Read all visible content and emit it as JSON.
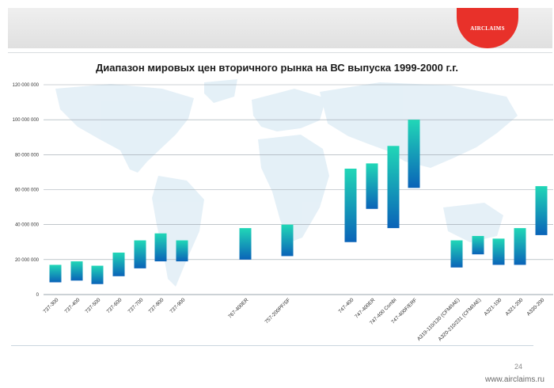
{
  "header": {
    "logo_text": "AIRCLAIMS",
    "title": "Диапазон мировых цен вторичного рынка на ВС выпуска 1999-2000 г.г."
  },
  "footer": {
    "page_number": "24",
    "site": "www.airclaims.ru"
  },
  "colors": {
    "bar_top": "#21d7b7",
    "bar_bottom": "#0a63b8",
    "gridline": "#9aa4ac",
    "logo": "#e8312a"
  },
  "chart_data": {
    "type": "bar",
    "subtype": "floating-range",
    "title": "Диапазон мировых цен вторичного рынка на ВС выпуска 1999-2000 г.г.",
    "xlabel": "",
    "ylabel": "",
    "ylim": [
      0,
      120000000
    ],
    "yticks": [
      0,
      20000000,
      40000000,
      60000000,
      80000000,
      100000000,
      120000000
    ],
    "ytick_labels": [
      "0",
      "20 000 000",
      "40 000 000",
      "60 000 000",
      "80 000 000",
      "100 000 000",
      "120 000 000"
    ],
    "grid": true,
    "background_picture": "world-map",
    "categories": [
      "737-300",
      "737-400",
      "737-500",
      "737-600",
      "737-700",
      "737-800",
      "737-900",
      "767-400ER",
      "757-200PF/SF",
      "747-400",
      "747-400ER",
      "747-400 Combi",
      "747-400F/ERF",
      "A319-110/130 (CFM/IAE)",
      "A320-210/231 (CFM/IAE)",
      "A321-100",
      "A321-200",
      "A330-200"
    ],
    "ranges": [
      [
        7000000,
        17000000
      ],
      [
        8000000,
        19000000
      ],
      [
        6000000,
        16500000
      ],
      [
        10500000,
        24000000
      ],
      [
        15000000,
        31000000
      ],
      [
        19000000,
        35000000
      ],
      [
        19000000,
        31000000
      ],
      [
        20000000,
        38000000
      ],
      [
        22000000,
        40000000
      ],
      [
        30000000,
        72000000
      ],
      [
        49000000,
        75000000
      ],
      [
        38000000,
        85000000
      ],
      [
        61000000,
        100000000
      ],
      [
        15500000,
        31000000
      ],
      [
        23000000,
        33500000
      ],
      [
        17000000,
        32000000
      ],
      [
        17000000,
        38000000
      ],
      [
        34000000,
        62000000
      ]
    ]
  }
}
